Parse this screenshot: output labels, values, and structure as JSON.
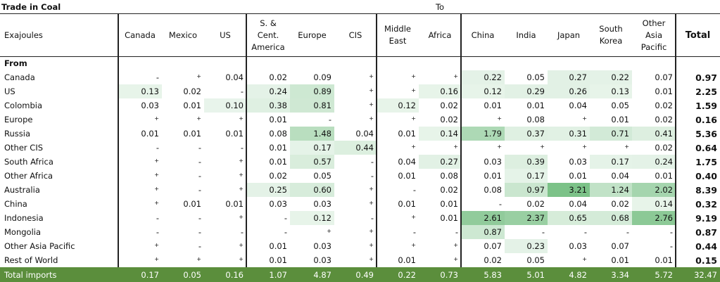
{
  "title": "Trade in Coal",
  "to_label": "To",
  "table": {
    "unit": "Exajoules",
    "columns": [
      "Canada",
      "Mexico",
      "US",
      "S. &\nCent.\nAmerica",
      "Europe",
      "CIS",
      "Middle\nEast",
      "Africa",
      "China",
      "India",
      "Japan",
      "South\nKorea",
      "Other\nAsia\nPacific",
      "Total"
    ],
    "from_label": "From",
    "rows": [
      [
        "Canada",
        "-",
        "+",
        "0.04",
        "0.02",
        "0.09",
        "+",
        "+",
        "+",
        "0.22",
        "0.05",
        "0.27",
        "0.22",
        "0.07",
        "0.97"
      ],
      [
        "US",
        "0.13",
        "0.02",
        "-",
        "0.24",
        "0.89",
        "+",
        "+",
        "0.16",
        "0.12",
        "0.29",
        "0.26",
        "0.13",
        "0.01",
        "2.25"
      ],
      [
        "Colombia",
        "0.03",
        "0.01",
        "0.10",
        "0.38",
        "0.81",
        "+",
        "0.12",
        "0.02",
        "0.01",
        "0.01",
        "0.04",
        "0.05",
        "0.02",
        "1.59"
      ],
      [
        "Europe",
        "+",
        "+",
        "+",
        "0.01",
        "-",
        "+",
        "+",
        "0.02",
        "+",
        "0.08",
        "+",
        "0.01",
        "0.02",
        "0.16"
      ],
      [
        "Russia",
        "0.01",
        "0.01",
        "0.01",
        "0.08",
        "1.48",
        "0.04",
        "0.01",
        "0.14",
        "1.79",
        "0.37",
        "0.31",
        "0.71",
        "0.41",
        "5.36"
      ],
      [
        "Other CIS",
        "-",
        "-",
        "-",
        "0.01",
        "0.17",
        "0.44",
        "+",
        "+",
        "+",
        "+",
        "+",
        "+",
        "0.02",
        "0.64"
      ],
      [
        "South Africa",
        "+",
        "-",
        "+",
        "0.01",
        "0.57",
        "-",
        "0.04",
        "0.27",
        "0.03",
        "0.39",
        "0.03",
        "0.17",
        "0.24",
        "1.75"
      ],
      [
        "Other Africa",
        "+",
        "-",
        "+",
        "0.02",
        "0.05",
        "-",
        "0.01",
        "0.08",
        "0.01",
        "0.17",
        "0.01",
        "0.04",
        "0.01",
        "0.40"
      ],
      [
        "Australia",
        "+",
        "-",
        "+",
        "0.25",
        "0.60",
        "+",
        "-",
        "0.02",
        "0.08",
        "0.97",
        "3.21",
        "1.24",
        "2.02",
        "8.39"
      ],
      [
        "China",
        "+",
        "0.01",
        "0.01",
        "0.03",
        "0.03",
        "+",
        "0.01",
        "0.01",
        "-",
        "0.02",
        "0.04",
        "0.02",
        "0.14",
        "0.32"
      ],
      [
        "Indonesia",
        "-",
        "-",
        "+",
        "-",
        "0.12",
        "-",
        "+",
        "0.01",
        "2.61",
        "2.37",
        "0.65",
        "0.68",
        "2.76",
        "9.19"
      ],
      [
        "Mongolia",
        "-",
        "-",
        "-",
        "-",
        "+",
        "+",
        "-",
        "-",
        "0.87",
        "-",
        "-",
        "-",
        "-",
        "0.87"
      ],
      [
        "Other Asia Pacific",
        "+",
        "-",
        "+",
        "0.01",
        "0.03",
        "+",
        "+",
        "+",
        "0.07",
        "0.23",
        "0.03",
        "0.07",
        "-",
        "0.44"
      ],
      [
        "Rest of World",
        "+",
        "+",
        "+",
        "0.01",
        "0.03",
        "+",
        "0.01",
        "+",
        "0.02",
        "0.05",
        "+",
        "0.01",
        "0.01",
        "0.15"
      ]
    ],
    "total_row": [
      "Total imports",
      "0.17",
      "0.05",
      "0.16",
      "1.07",
      "4.87",
      "0.49",
      "0.22",
      "0.73",
      "5.83",
      "5.01",
      "4.82",
      "3.34",
      "5.72",
      "32.47"
    ]
  }
}
